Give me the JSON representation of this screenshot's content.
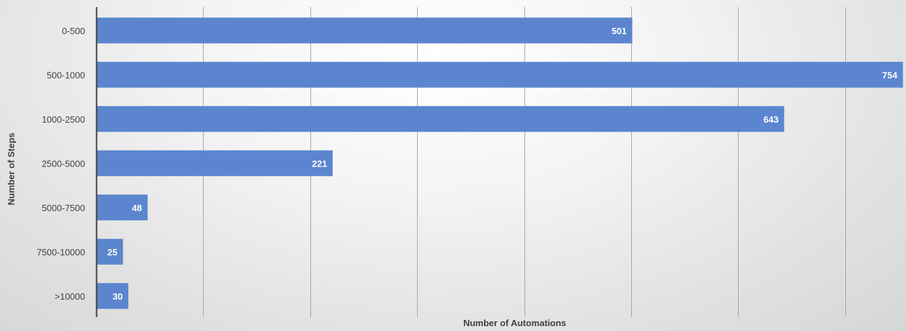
{
  "chart_data": {
    "type": "bar",
    "orientation": "horizontal",
    "title": "",
    "xlabel": "Number of Automations",
    "ylabel": "Number of Steps",
    "categories": [
      "0-500",
      "500-1000",
      "1000-2500",
      "2500-5000",
      "5000-7500",
      "7500-10000",
      ">10000"
    ],
    "values": [
      501,
      754,
      643,
      221,
      48,
      25,
      30
    ],
    "data_labels": [
      "501",
      "754",
      "643",
      "221",
      "48",
      "25",
      "30"
    ],
    "xlim": [
      0,
      750
    ],
    "x_gridline_step": 100,
    "x_tick_labels_shown": false,
    "grid": "vertical",
    "legend": "none",
    "colors": {
      "bar": "#5b86cf",
      "data_label": "#ffffff",
      "gridline": "#a6a6a6",
      "axis": "#404040",
      "text": "#404040"
    }
  }
}
